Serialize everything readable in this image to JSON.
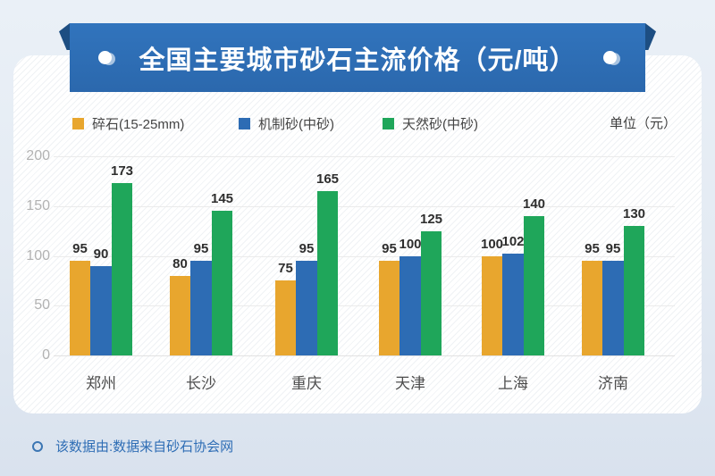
{
  "banner": {
    "title": "全国主要城市砂石主流价格（元/吨）"
  },
  "legend": [
    {
      "label": "碎石(15-25mm)",
      "color": "#e8a62e"
    },
    {
      "label": "机制砂(中砂)",
      "color": "#2d6cb4"
    },
    {
      "label": "天然砂(中砂)",
      "color": "#1fa65a"
    }
  ],
  "unit_label": "单位（元）",
  "chart_data": {
    "type": "bar",
    "title": "全国主要城市砂石主流价格（元/吨）",
    "categories": [
      "郑州",
      "长沙",
      "重庆",
      "天津",
      "上海",
      "济南"
    ],
    "series": [
      {
        "name": "碎石(15-25mm)",
        "color": "#e8a62e",
        "values": [
          95,
          80,
          75,
          95,
          100,
          95
        ]
      },
      {
        "name": "机制砂(中砂)",
        "color": "#2d6cb4",
        "values": [
          90,
          95,
          95,
          100,
          102,
          95
        ]
      },
      {
        "name": "天然砂(中砂)",
        "color": "#1fa65a",
        "values": [
          173,
          145,
          165,
          125,
          140,
          130
        ]
      }
    ],
    "xlabel": "",
    "ylabel": "",
    "ylim": [
      0,
      200
    ],
    "yticks": [
      0,
      50,
      100,
      150,
      200
    ],
    "grid": true,
    "legend_position": "top",
    "unit": "元"
  },
  "footer": {
    "text": "该数据由:数据来自砂石协会网"
  },
  "colors": {
    "banner_blue": "#2e6fb7",
    "banner_fold": "#1d4e82",
    "page_background": "#e4ebf3",
    "footer_text": "#2f6eb5"
  }
}
